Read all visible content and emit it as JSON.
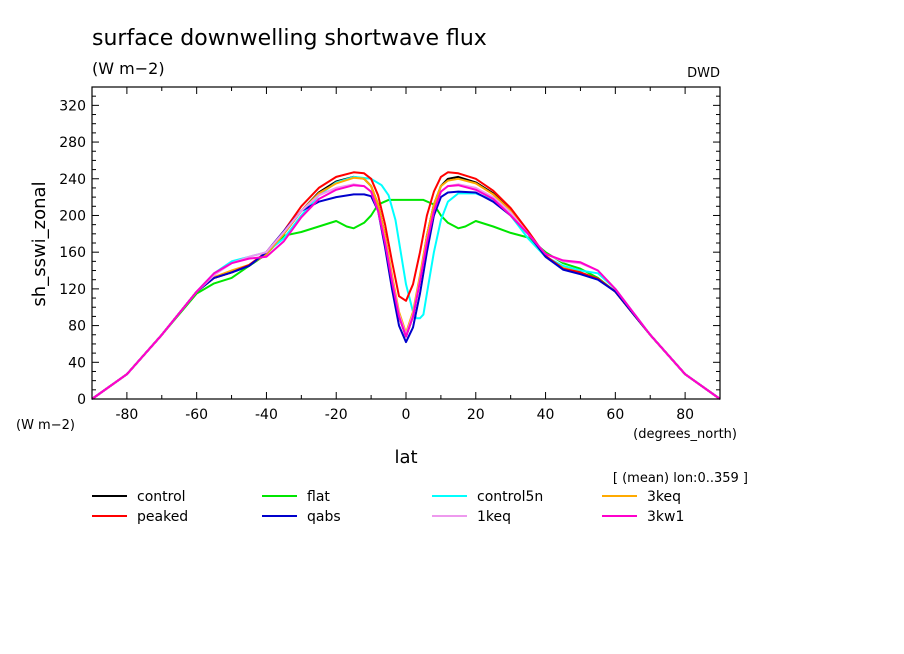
{
  "chart_data": {
    "type": "line",
    "title": "surface downwelling shortwave flux",
    "units": "(W m−2)",
    "source_label": "DWD",
    "ylabel": "sh_sswi_zonal",
    "y_units": "(W m−2)",
    "xlabel": "lat",
    "x_units": "(degrees_north)",
    "averaging_note": "[ (mean) lon:0..359 ]",
    "xlim": [
      -90,
      90
    ],
    "ylim": [
      0,
      340
    ],
    "x_ticks": [
      -80,
      -60,
      -40,
      -20,
      0,
      20,
      40,
      60,
      80
    ],
    "y_ticks": [
      0,
      40,
      80,
      120,
      160,
      200,
      240,
      280,
      320
    ],
    "series": [
      {
        "name": "control",
        "color": "#000000",
        "x": [
          -90,
          -80,
          -70,
          -60,
          -55,
          -50,
          -45,
          -40,
          -35,
          -30,
          -25,
          -20,
          -15,
          -12,
          -10,
          -8,
          -6,
          -4,
          -2,
          0,
          2,
          4,
          6,
          8,
          10,
          12,
          15,
          20,
          25,
          30,
          35,
          40,
          45,
          50,
          55,
          60,
          70,
          80,
          90
        ],
        "y": [
          0,
          27,
          70,
          117,
          132,
          138,
          145,
          158,
          180,
          205,
          225,
          237,
          242,
          240,
          232,
          212,
          178,
          130,
          90,
          68,
          90,
          130,
          178,
          212,
          232,
          240,
          242,
          236,
          224,
          205,
          180,
          155,
          142,
          137,
          131,
          117,
          70,
          27,
          0
        ]
      },
      {
        "name": "flat",
        "color": "#00e600",
        "x": [
          -90,
          -80,
          -70,
          -60,
          -55,
          -50,
          -45,
          -40,
          -35,
          -30,
          -25,
          -20,
          -17,
          -15,
          -12,
          -10,
          -8,
          -5,
          0,
          5,
          8,
          10,
          12,
          15,
          17,
          20,
          25,
          30,
          35,
          40,
          45,
          50,
          55,
          60,
          70,
          80,
          90
        ],
        "y": [
          0,
          27,
          70,
          115,
          126,
          132,
          145,
          158,
          178,
          182,
          188,
          194,
          188,
          186,
          192,
          200,
          212,
          217,
          217,
          217,
          212,
          200,
          192,
          186,
          188,
          194,
          188,
          181,
          176,
          160,
          148,
          142,
          132,
          117,
          70,
          27,
          0
        ]
      },
      {
        "name": "control5n",
        "color": "#00ffff",
        "x": [
          -90,
          -80,
          -70,
          -60,
          -55,
          -50,
          -45,
          -40,
          -35,
          -30,
          -25,
          -20,
          -15,
          -10,
          -7,
          -5,
          -3,
          0,
          2,
          3,
          4,
          5,
          6,
          8,
          10,
          12,
          15,
          20,
          25,
          30,
          35,
          40,
          45,
          50,
          55,
          60,
          70,
          80,
          90
        ],
        "y": [
          0,
          27,
          70,
          117,
          137,
          150,
          155,
          160,
          175,
          200,
          222,
          236,
          242,
          240,
          233,
          222,
          195,
          125,
          95,
          88,
          88,
          92,
          115,
          160,
          195,
          215,
          224,
          224,
          217,
          200,
          175,
          155,
          145,
          140,
          137,
          120,
          70,
          27,
          0
        ]
      },
      {
        "name": "3keq",
        "color": "#ffaa00",
        "x": [
          -90,
          -80,
          -70,
          -60,
          -55,
          -50,
          -45,
          -40,
          -35,
          -30,
          -25,
          -20,
          -15,
          -12,
          -10,
          -8,
          -6,
          -4,
          -2,
          0,
          2,
          4,
          6,
          8,
          10,
          12,
          15,
          20,
          25,
          30,
          35,
          40,
          45,
          50,
          55,
          60,
          70,
          80,
          90
        ],
        "y": [
          0,
          27,
          70,
          117,
          133,
          140,
          146,
          158,
          180,
          205,
          224,
          235,
          241,
          240,
          232,
          212,
          178,
          135,
          95,
          72,
          95,
          135,
          178,
          212,
          232,
          238,
          240,
          235,
          223,
          205,
          180,
          155,
          143,
          138,
          131,
          117,
          70,
          27,
          0
        ]
      },
      {
        "name": "peaked",
        "color": "#ff0000",
        "x": [
          -90,
          -80,
          -70,
          -60,
          -55,
          -50,
          -45,
          -40,
          -35,
          -30,
          -25,
          -20,
          -15,
          -12,
          -10,
          -8,
          -6,
          -4,
          -2,
          0,
          2,
          4,
          6,
          8,
          10,
          12,
          15,
          20,
          25,
          30,
          35,
          40,
          45,
          50,
          55,
          60,
          70,
          80,
          90
        ],
        "y": [
          0,
          27,
          70,
          117,
          132,
          138,
          146,
          160,
          183,
          210,
          230,
          242,
          247,
          246,
          240,
          222,
          190,
          150,
          112,
          107,
          125,
          160,
          200,
          226,
          242,
          247,
          246,
          240,
          227,
          208,
          183,
          156,
          142,
          138,
          131,
          117,
          70,
          27,
          0
        ]
      },
      {
        "name": "qabs",
        "color": "#0000cc",
        "x": [
          -90,
          -80,
          -70,
          -60,
          -55,
          -50,
          -45,
          -40,
          -35,
          -30,
          -25,
          -20,
          -15,
          -12,
          -10,
          -8,
          -6,
          -4,
          -2,
          0,
          2,
          4,
          6,
          8,
          10,
          12,
          15,
          20,
          25,
          30,
          35,
          40,
          45,
          50,
          55,
          60,
          70,
          80,
          90
        ],
        "y": [
          0,
          27,
          70,
          117,
          132,
          138,
          145,
          160,
          183,
          205,
          215,
          220,
          223,
          223,
          221,
          205,
          165,
          120,
          80,
          62,
          78,
          115,
          160,
          200,
          220,
          225,
          226,
          225,
          215,
          200,
          180,
          155,
          141,
          136,
          130,
          117,
          70,
          27,
          0
        ]
      },
      {
        "name": "1keq",
        "color": "#ee99ee",
        "x": [
          -90,
          -80,
          -70,
          -60,
          -55,
          -50,
          -45,
          -40,
          -35,
          -30,
          -25,
          -20,
          -15,
          -12,
          -10,
          -8,
          -6,
          -4,
          -2,
          0,
          2,
          4,
          6,
          8,
          10,
          12,
          15,
          20,
          25,
          30,
          35,
          40,
          45,
          50,
          55,
          60,
          70,
          80,
          90
        ],
        "y": [
          0,
          27,
          70,
          117,
          135,
          148,
          155,
          160,
          182,
          205,
          222,
          230,
          234,
          232,
          226,
          205,
          172,
          130,
          92,
          70,
          92,
          130,
          172,
          205,
          226,
          232,
          234,
          230,
          220,
          203,
          180,
          158,
          150,
          148,
          140,
          120,
          70,
          27,
          0
        ]
      },
      {
        "name": "3kw1",
        "color": "#ff00cc",
        "x": [
          -90,
          -80,
          -70,
          -60,
          -55,
          -50,
          -45,
          -40,
          -35,
          -30,
          -25,
          -20,
          -15,
          -12,
          -10,
          -8,
          -6,
          -4,
          -2,
          0,
          2,
          4,
          6,
          8,
          10,
          12,
          15,
          20,
          25,
          30,
          35,
          40,
          45,
          50,
          55,
          60,
          70,
          80,
          90
        ],
        "y": [
          0,
          27,
          70,
          117,
          137,
          148,
          153,
          155,
          172,
          198,
          218,
          228,
          233,
          232,
          226,
          205,
          170,
          128,
          90,
          68,
          90,
          128,
          170,
          205,
          226,
          232,
          233,
          228,
          218,
          200,
          180,
          158,
          151,
          149,
          140,
          120,
          70,
          27,
          0
        ]
      }
    ],
    "legend": {
      "placement": "bottom",
      "rows": [
        [
          "control",
          "flat",
          "control5n",
          "3keq"
        ],
        [
          "peaked",
          "qabs",
          "1keq",
          "3kw1"
        ]
      ]
    },
    "grid": false
  }
}
